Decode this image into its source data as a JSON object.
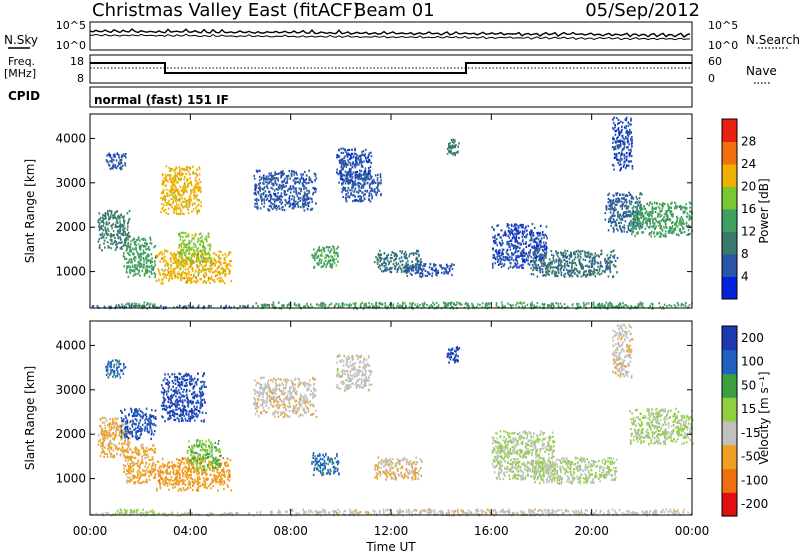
{
  "header": {
    "station": "Christmas Valley East (fitACF)",
    "beam": "Beam 01",
    "date": "05/Sep/2012"
  },
  "noise_panel": {
    "left_label": "N.Sky",
    "right_label": "N.Search",
    "left_ticks": [
      "10^5",
      "10^0"
    ],
    "right_ticks": [
      "10^5",
      "10^0"
    ]
  },
  "freq_panel": {
    "label_line1": "Freq.",
    "label_line2": "[MHz]",
    "left_ticks": [
      "18",
      "8"
    ],
    "right_ticks": [
      "60",
      "0"
    ],
    "right_label": "Nave"
  },
  "cpid_panel": {
    "label": "CPID",
    "text": "normal (fast) 151 IF"
  },
  "x_axis": {
    "label": "Time UT",
    "ticks": [
      "00:00",
      "04:00",
      "08:00",
      "12:00",
      "16:00",
      "20:00",
      "00:00"
    ]
  },
  "colors": {
    "power_scale": [
      "#0022dd",
      "#2a56a8",
      "#3a7a6a",
      "#40a060",
      "#7ac830",
      "#f0b000",
      "#f07010",
      "#e82010"
    ],
    "velocity_scale": [
      "#1c3ab0",
      "#2060c0",
      "#3aa040",
      "#90d040",
      "#c0c0c0",
      "#f0a020",
      "#f07010",
      "#e01010"
    ]
  },
  "chart_data": [
    {
      "type": "heatmap",
      "quantity": "power",
      "ylabel": "Slant Range [km]",
      "xlabel": "",
      "yticks": [
        1000,
        2000,
        3000,
        4000
      ],
      "ylim": [
        180,
        4550
      ],
      "xlim_hours": [
        0,
        24
      ],
      "colorbar_label": "Power [dB]",
      "colorbar_ticks": [
        "4",
        "8",
        "12",
        "16",
        "20",
        "24",
        "28"
      ],
      "colorbar_range": [
        0,
        32
      ],
      "regions": [
        {
          "t0": 0.3,
          "t1": 1.6,
          "r0": 1500,
          "r1": 2400,
          "v": 10
        },
        {
          "t0": 0.6,
          "t1": 1.4,
          "r0": 3300,
          "r1": 3700,
          "v": 6
        },
        {
          "t0": 1.3,
          "t1": 2.6,
          "r0": 900,
          "r1": 1800,
          "v": 14
        },
        {
          "t0": 2.6,
          "t1": 5.6,
          "r0": 750,
          "r1": 1500,
          "v": 22
        },
        {
          "t0": 2.8,
          "t1": 4.4,
          "r0": 2300,
          "r1": 3400,
          "v": 22
        },
        {
          "t0": 3.5,
          "t1": 4.8,
          "r0": 1200,
          "r1": 1900,
          "v": 18
        },
        {
          "t0": 1.0,
          "t1": 2.6,
          "r0": 230,
          "r1": 330,
          "v": 15
        },
        {
          "t0": 6.5,
          "t1": 9.0,
          "r0": 2400,
          "r1": 3300,
          "v": 6
        },
        {
          "t0": 8.8,
          "t1": 9.9,
          "r0": 1100,
          "r1": 1600,
          "v": 15
        },
        {
          "t0": 9.8,
          "t1": 11.2,
          "r0": 3000,
          "r1": 3800,
          "v": 5
        },
        {
          "t0": 10.0,
          "t1": 11.6,
          "r0": 2600,
          "r1": 3300,
          "v": 6
        },
        {
          "t0": 11.3,
          "t1": 13.2,
          "r0": 1000,
          "r1": 1500,
          "v": 9
        },
        {
          "t0": 12.5,
          "t1": 14.5,
          "r0": 900,
          "r1": 1200,
          "v": 6
        },
        {
          "t0": 14.2,
          "t1": 14.7,
          "r0": 3600,
          "r1": 4000,
          "v": 10
        },
        {
          "t0": 16.0,
          "t1": 18.2,
          "r0": 1100,
          "r1": 2100,
          "v": 5
        },
        {
          "t0": 17.5,
          "t1": 21.0,
          "r0": 900,
          "r1": 1500,
          "v": 9
        },
        {
          "t0": 20.5,
          "t1": 22.0,
          "r0": 1900,
          "r1": 2800,
          "v": 7
        },
        {
          "t0": 21.5,
          "t1": 24.0,
          "r0": 1800,
          "r1": 2600,
          "v": 14
        },
        {
          "t0": 20.8,
          "t1": 21.6,
          "r0": 3300,
          "r1": 4500,
          "v": 5
        },
        {
          "t0": 6.5,
          "t1": 24.0,
          "r0": 190,
          "r1": 330,
          "v": 14
        },
        {
          "t0": 0.0,
          "t1": 6.5,
          "r0": 190,
          "r1": 260,
          "v": 8
        }
      ]
    },
    {
      "type": "heatmap",
      "quantity": "velocity",
      "ylabel": "Slant Range [km]",
      "xlabel": "Time UT",
      "yticks": [
        1000,
        2000,
        3000,
        4000
      ],
      "ylim": [
        180,
        4550
      ],
      "xlim_hours": [
        0,
        24
      ],
      "colorbar_label": "Velocity [m s⁻¹]",
      "colorbar_ticks": [
        "200",
        "100",
        "50",
        "15",
        "-15",
        "-50",
        "-100",
        "-200"
      ],
      "colorbar_range": [
        -250,
        250
      ],
      "regions": [
        {
          "t0": 0.3,
          "t1": 1.6,
          "r0": 1500,
          "r1": 2400,
          "v": -80
        },
        {
          "t0": 0.6,
          "t1": 1.4,
          "r0": 3300,
          "r1": 3700,
          "v": 150
        },
        {
          "t0": 1.3,
          "t1": 2.6,
          "r0": 900,
          "r1": 1800,
          "v": -90
        },
        {
          "t0": 2.6,
          "t1": 5.6,
          "r0": 750,
          "r1": 1500,
          "v": -100
        },
        {
          "t0": 1.2,
          "t1": 2.6,
          "r0": 1900,
          "r1": 2600,
          "v": 180
        },
        {
          "t0": 2.8,
          "t1": 4.6,
          "r0": 2300,
          "r1": 3400,
          "v": 200
        },
        {
          "t0": 3.8,
          "t1": 5.2,
          "r0": 1200,
          "r1": 1900,
          "v": 60
        },
        {
          "t0": 1.0,
          "t1": 2.6,
          "r0": 230,
          "r1": 330,
          "v": 30
        },
        {
          "t0": 6.5,
          "t1": 9.0,
          "r0": 2400,
          "r1": 3300,
          "v": -40
        },
        {
          "t0": 8.8,
          "t1": 9.9,
          "r0": 1100,
          "r1": 1600,
          "v": 150
        },
        {
          "t0": 9.8,
          "t1": 11.2,
          "r0": 3000,
          "r1": 3800,
          "v": -30
        },
        {
          "t0": 11.3,
          "t1": 13.2,
          "r0": 1000,
          "r1": 1500,
          "v": -60
        },
        {
          "t0": 14.2,
          "t1": 14.7,
          "r0": 3600,
          "r1": 4000,
          "v": 210
        },
        {
          "t0": 16.0,
          "t1": 18.5,
          "r0": 1000,
          "r1": 2100,
          "v": 0
        },
        {
          "t0": 17.5,
          "t1": 21.0,
          "r0": 900,
          "r1": 1500,
          "v": 0
        },
        {
          "t0": 21.5,
          "t1": 24.0,
          "r0": 1800,
          "r1": 2600,
          "v": 5
        },
        {
          "t0": 20.8,
          "t1": 21.6,
          "r0": 3300,
          "r1": 4500,
          "v": -40
        },
        {
          "t0": 6.5,
          "t1": 24.0,
          "r0": 190,
          "r1": 330,
          "v": -35
        },
        {
          "t0": 0.0,
          "t1": 6.5,
          "r0": 190,
          "r1": 260,
          "v": -20
        }
      ]
    }
  ]
}
